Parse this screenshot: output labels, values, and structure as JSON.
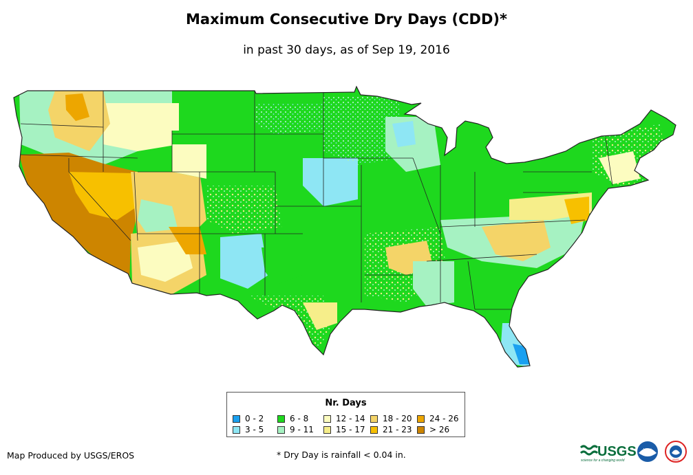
{
  "header": {
    "title": "Maximum Consecutive Dry Days (CDD)*",
    "subtitle": "in past 30 days, as of Sep 19, 2016"
  },
  "legend": {
    "title": "Nr. Days",
    "items": [
      {
        "label": "0 - 2",
        "color": "#1aa0f0"
      },
      {
        "label": "3 - 5",
        "color": "#8ee6f4"
      },
      {
        "label": "6 - 8",
        "color": "#1ed81e"
      },
      {
        "label": "9 - 11",
        "color": "#a6f2c2"
      },
      {
        "label": "12 - 14",
        "color": "#fcfcc0"
      },
      {
        "label": "15 - 17",
        "color": "#f6ee8a"
      },
      {
        "label": "18 - 20",
        "color": "#f4d468"
      },
      {
        "label": "21 - 23",
        "color": "#f7c000"
      },
      {
        "label": "24 - 26",
        "color": "#eda600"
      },
      {
        "label": "> 26",
        "color": "#cd8500"
      }
    ]
  },
  "footer": {
    "producer": "Map Produced by USGS/EROS",
    "footnote": "* Dry Day is rainfall < 0.04 in."
  },
  "logos": {
    "usgs_text": "USGS",
    "usgs_tagline": "science for a changing world",
    "noaa_text": "NOAA",
    "nws_text": "NWS"
  }
}
